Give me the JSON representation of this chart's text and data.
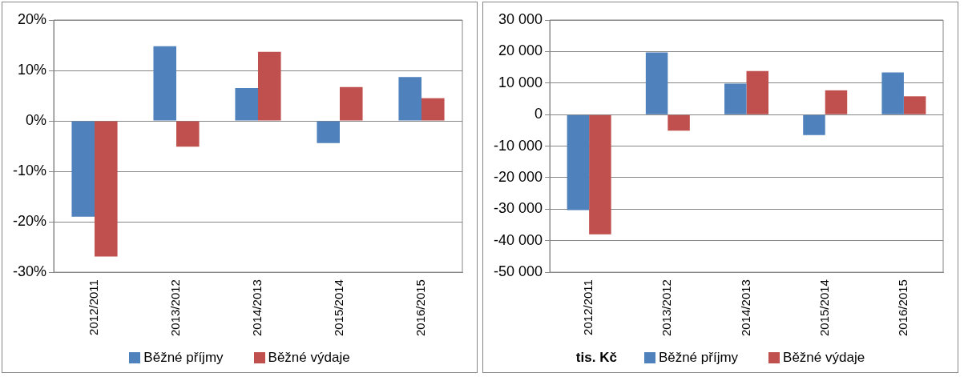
{
  "chart_data": [
    {
      "type": "bar",
      "categories": [
        "2012/2011",
        "2013/2012",
        "2014/2013",
        "2015/2014",
        "2016/2015"
      ],
      "series": [
        {
          "name": "Běžné příjmy",
          "color": "#4f81bd",
          "values": [
            -19.0,
            14.8,
            6.5,
            -4.4,
            8.7
          ]
        },
        {
          "name": "Běžné výdaje",
          "color": "#c0504d",
          "values": [
            -26.9,
            -5.1,
            13.7,
            6.7,
            4.5
          ]
        }
      ],
      "ylim": [
        -30,
        20
      ],
      "yticks": [
        {
          "value": -30,
          "label": "-30%"
        },
        {
          "value": -20,
          "label": "-20%"
        },
        {
          "value": -10,
          "label": "-10%"
        },
        {
          "value": 0,
          "label": "0%"
        },
        {
          "value": 10,
          "label": "10%"
        },
        {
          "value": 20,
          "label": "20%"
        }
      ],
      "grid": "y",
      "legend": "bottom"
    },
    {
      "type": "bar",
      "categories": [
        "2012/2011",
        "2013/2012",
        "2014/2013",
        "2015/2014",
        "2016/2015"
      ],
      "series": [
        {
          "name": "Běžné příjmy",
          "color": "#4f81bd",
          "values": [
            -30300,
            19700,
            9800,
            -6500,
            13400
          ]
        },
        {
          "name": "Běžné výdaje",
          "color": "#c0504d",
          "values": [
            -38000,
            -5100,
            13800,
            7700,
            5800
          ]
        }
      ],
      "ylim": [
        -50000,
        30000
      ],
      "yticks": [
        {
          "value": -50000,
          "label": "-50 000"
        },
        {
          "value": -40000,
          "label": "-40 000"
        },
        {
          "value": -30000,
          "label": "-30 000"
        },
        {
          "value": -20000,
          "label": "-20 000"
        },
        {
          "value": -10000,
          "label": "-10 000"
        },
        {
          "value": 0,
          "label": "0"
        },
        {
          "value": 10000,
          "label": "10 000"
        },
        {
          "value": 20000,
          "label": "20 000"
        },
        {
          "value": 30000,
          "label": "30 000"
        }
      ],
      "annotations": [
        "tis. Kč"
      ],
      "grid": "y",
      "legend": "bottom"
    }
  ]
}
